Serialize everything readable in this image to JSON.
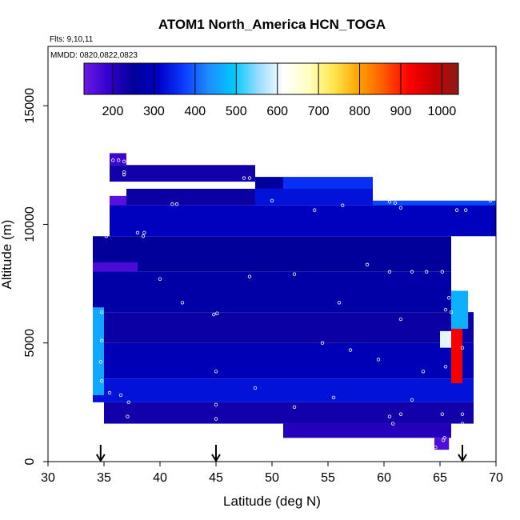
{
  "chart_data": {
    "type": "heatmap",
    "title": "ATOM1 North_America HCN_TOGA",
    "flights_label": "Flts: 9,10,11",
    "date_label": "MMDD: 0820,0822,0823",
    "xlabel": "Latitude (deg N)",
    "ylabel": "Altitude (m)",
    "xlim": [
      30,
      70
    ],
    "ylim": [
      0,
      17500
    ],
    "x_ticks": [
      30,
      35,
      40,
      45,
      50,
      55,
      60,
      65,
      70
    ],
    "y_ticks": [
      0,
      5000,
      10000,
      15000
    ],
    "colorbar": {
      "range": [
        130,
        1040
      ],
      "ticks": [
        200,
        300,
        400,
        500,
        600,
        700,
        800,
        900,
        1000
      ],
      "colors": [
        "#6a1ae6",
        "#3300cc",
        "#000099",
        "#0000c8",
        "#0a3cff",
        "#1e8cff",
        "#00c8ff",
        "#9adcff",
        "#ffffff",
        "#ffffc0",
        "#ffe64d",
        "#ffa500",
        "#ff5a00",
        "#ff0000",
        "#c80000",
        "#8b1a1a"
      ]
    },
    "arrows_at_latitude": [
      34.7,
      45,
      67
    ],
    "cells": [
      {
        "lat": [
          35.5,
          37
        ],
        "alt": [
          12500,
          13000
        ],
        "ppt": 180
      },
      {
        "lat": [
          35.5,
          48.5
        ],
        "alt": [
          11800,
          12500
        ],
        "ppt": 230
      },
      {
        "lat": [
          48.5,
          51
        ],
        "alt": [
          11500,
          12000
        ],
        "ppt": 260
      },
      {
        "lat": [
          51,
          59
        ],
        "alt": [
          11400,
          12000
        ],
        "ppt": 360
      },
      {
        "lat": [
          35.5,
          37
        ],
        "alt": [
          10500,
          11200
        ],
        "ppt": 150
      },
      {
        "lat": [
          37,
          48.5
        ],
        "alt": [
          10800,
          11500
        ],
        "ppt": 240
      },
      {
        "lat": [
          48.5,
          59
        ],
        "alt": [
          10800,
          11500
        ],
        "ppt": 330
      },
      {
        "lat": [
          59,
          70
        ],
        "alt": [
          10300,
          11000
        ],
        "ppt": 380
      },
      {
        "lat": [
          35.5,
          70
        ],
        "alt": [
          9500,
          10800
        ],
        "ppt": 300
      },
      {
        "lat": [
          34,
          66
        ],
        "alt": [
          8000,
          9500
        ],
        "ppt": 250
      },
      {
        "lat": [
          34,
          38
        ],
        "alt": [
          7500,
          8400
        ],
        "ppt": 165
      },
      {
        "lat": [
          34,
          66
        ],
        "alt": [
          6300,
          8000
        ],
        "ppt": 270
      },
      {
        "lat": [
          34,
          68
        ],
        "alt": [
          5000,
          6300
        ],
        "ppt": 240
      },
      {
        "lat": [
          34,
          68
        ],
        "alt": [
          3500,
          5000
        ],
        "ppt": 290
      },
      {
        "lat": [
          34,
          68
        ],
        "alt": [
          2500,
          3500
        ],
        "ppt": 330
      },
      {
        "lat": [
          35,
          68
        ],
        "alt": [
          1600,
          2500
        ],
        "ppt": 230
      },
      {
        "lat": [
          51,
          66
        ],
        "alt": [
          1000,
          1600
        ],
        "ppt": 210
      },
      {
        "lat": [
          64.5,
          65.8
        ],
        "alt": [
          500,
          1000
        ],
        "ppt": 160
      },
      {
        "lat": [
          65,
          66
        ],
        "alt": [
          4800,
          5500
        ],
        "ppt": 600
      },
      {
        "lat": [
          66,
          67
        ],
        "alt": [
          3300,
          5600
        ],
        "ppt": 930
      },
      {
        "lat": [
          66,
          67.5
        ],
        "alt": [
          5600,
          7200
        ],
        "ppt": 470
      },
      {
        "lat": [
          34,
          35
        ],
        "alt": [
          2800,
          6500
        ],
        "ppt": 460
      }
    ],
    "flight_track": [
      {
        "lat": 35.8,
        "alt": 12700
      },
      {
        "lat": 36.3,
        "alt": 12700
      },
      {
        "lat": 36.8,
        "alt": 12650
      },
      {
        "lat": 36.8,
        "alt": 12200
      },
      {
        "lat": 36.8,
        "alt": 12100
      },
      {
        "lat": 35.5,
        "alt": 11600
      },
      {
        "lat": 35.3,
        "alt": 10900
      },
      {
        "lat": 35.2,
        "alt": 10400
      },
      {
        "lat": 35.2,
        "alt": 9500
      },
      {
        "lat": 38.0,
        "alt": 9650
      },
      {
        "lat": 38.6,
        "alt": 9650
      },
      {
        "lat": 41.1,
        "alt": 10850
      },
      {
        "lat": 41.5,
        "alt": 10850
      },
      {
        "lat": 47.5,
        "alt": 11950
      },
      {
        "lat": 48.0,
        "alt": 11950
      },
      {
        "lat": 50.0,
        "alt": 11000
      },
      {
        "lat": 53.8,
        "alt": 10600
      },
      {
        "lat": 56.3,
        "alt": 10800
      },
      {
        "lat": 60.5,
        "alt": 10950
      },
      {
        "lat": 61.0,
        "alt": 10900
      },
      {
        "lat": 61.5,
        "alt": 10700
      },
      {
        "lat": 66.5,
        "alt": 10600
      },
      {
        "lat": 67.3,
        "alt": 10600
      },
      {
        "lat": 69.5,
        "alt": 11000
      },
      {
        "lat": 70.0,
        "alt": 11300
      },
      {
        "lat": 60.5,
        "alt": 8000
      },
      {
        "lat": 62.5,
        "alt": 8000
      },
      {
        "lat": 63.8,
        "alt": 8000
      },
      {
        "lat": 65.2,
        "alt": 8000
      },
      {
        "lat": 66.2,
        "alt": 8000
      },
      {
        "lat": 66.4,
        "alt": 7300
      },
      {
        "lat": 65.8,
        "alt": 6900
      },
      {
        "lat": 66.0,
        "alt": 6300
      },
      {
        "lat": 65.5,
        "alt": 6400
      },
      {
        "lat": 34.8,
        "alt": 6300
      },
      {
        "lat": 34.8,
        "alt": 5100
      },
      {
        "lat": 34.7,
        "alt": 4200
      },
      {
        "lat": 34.8,
        "alt": 3400
      },
      {
        "lat": 35.5,
        "alt": 2900
      },
      {
        "lat": 36.5,
        "alt": 2800
      },
      {
        "lat": 37.2,
        "alt": 2500
      },
      {
        "lat": 37.1,
        "alt": 1900
      },
      {
        "lat": 37.0,
        "alt": 1300
      },
      {
        "lat": 44.8,
        "alt": 6200
      },
      {
        "lat": 45.1,
        "alt": 6250
      },
      {
        "lat": 45.0,
        "alt": 3800
      },
      {
        "lat": 45.0,
        "alt": 2400
      },
      {
        "lat": 45.0,
        "alt": 1800
      },
      {
        "lat": 54.5,
        "alt": 5000
      },
      {
        "lat": 57.0,
        "alt": 4700
      },
      {
        "lat": 59.5,
        "alt": 4300
      },
      {
        "lat": 60.5,
        "alt": 1900
      },
      {
        "lat": 60.8,
        "alt": 1600
      },
      {
        "lat": 61.5,
        "alt": 2000
      },
      {
        "lat": 62.5,
        "alt": 2600
      },
      {
        "lat": 64.6,
        "alt": 600
      },
      {
        "lat": 65.3,
        "alt": 900
      },
      {
        "lat": 65.4,
        "alt": 1000
      },
      {
        "lat": 65.2,
        "alt": 2000
      },
      {
        "lat": 65.5,
        "alt": 4000
      },
      {
        "lat": 67.0,
        "alt": 4800
      },
      {
        "lat": 67.0,
        "alt": 2000
      },
      {
        "lat": 67.0,
        "alt": 1600
      },
      {
        "lat": 38.5,
        "alt": 9500
      },
      {
        "lat": 40.0,
        "alt": 7700
      },
      {
        "lat": 42.0,
        "alt": 6700
      },
      {
        "lat": 48.0,
        "alt": 7800
      },
      {
        "lat": 52.0,
        "alt": 7900
      },
      {
        "lat": 56.0,
        "alt": 6700
      },
      {
        "lat": 58.5,
        "alt": 8300
      },
      {
        "lat": 61.5,
        "alt": 6000
      },
      {
        "lat": 63.5,
        "alt": 3800
      },
      {
        "lat": 48.5,
        "alt": 3100
      },
      {
        "lat": 52.0,
        "alt": 2300
      },
      {
        "lat": 55.5,
        "alt": 2700
      }
    ]
  }
}
